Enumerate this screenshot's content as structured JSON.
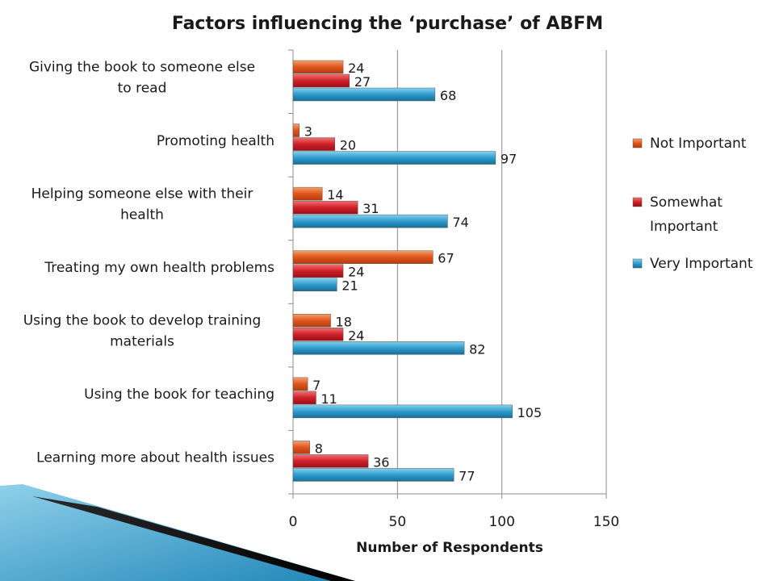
{
  "chart_data": {
    "type": "bar",
    "orientation": "horizontal",
    "title": "Factors influencing the ‘purchase’ of ABFM",
    "xlabel": "Number of Respondents",
    "ylabel": "",
    "xlim": [
      0,
      150
    ],
    "xticks": [
      "0",
      "50",
      "100",
      "150"
    ],
    "grid": true,
    "legend_position": "right",
    "categories": [
      [
        "Giving the book to someone else",
        "to read"
      ],
      [
        "Promoting health"
      ],
      [
        "Helping someone else with their",
        "health"
      ],
      [
        "Treating my own health problems"
      ],
      [
        "Using the book to develop training",
        "materials"
      ],
      [
        "Using the book for teaching"
      ],
      [
        "Learning more about health issues"
      ]
    ],
    "series": [
      {
        "name": "Not Important",
        "color": "#e0541c",
        "values": [
          24,
          3,
          14,
          67,
          18,
          7,
          8
        ]
      },
      {
        "name": "Somewhat Important",
        "color": "#d0202a",
        "values": [
          27,
          20,
          31,
          24,
          24,
          11,
          36
        ]
      },
      {
        "name": "Very Important",
        "color": "#2e9ccc",
        "values": [
          68,
          97,
          74,
          21,
          82,
          105,
          77
        ]
      }
    ],
    "legend": [
      {
        "lines": [
          "Not Important"
        ]
      },
      {
        "lines": [
          "Somewhat",
          "Important"
        ]
      },
      {
        "lines": [
          "Very Important"
        ]
      }
    ]
  }
}
